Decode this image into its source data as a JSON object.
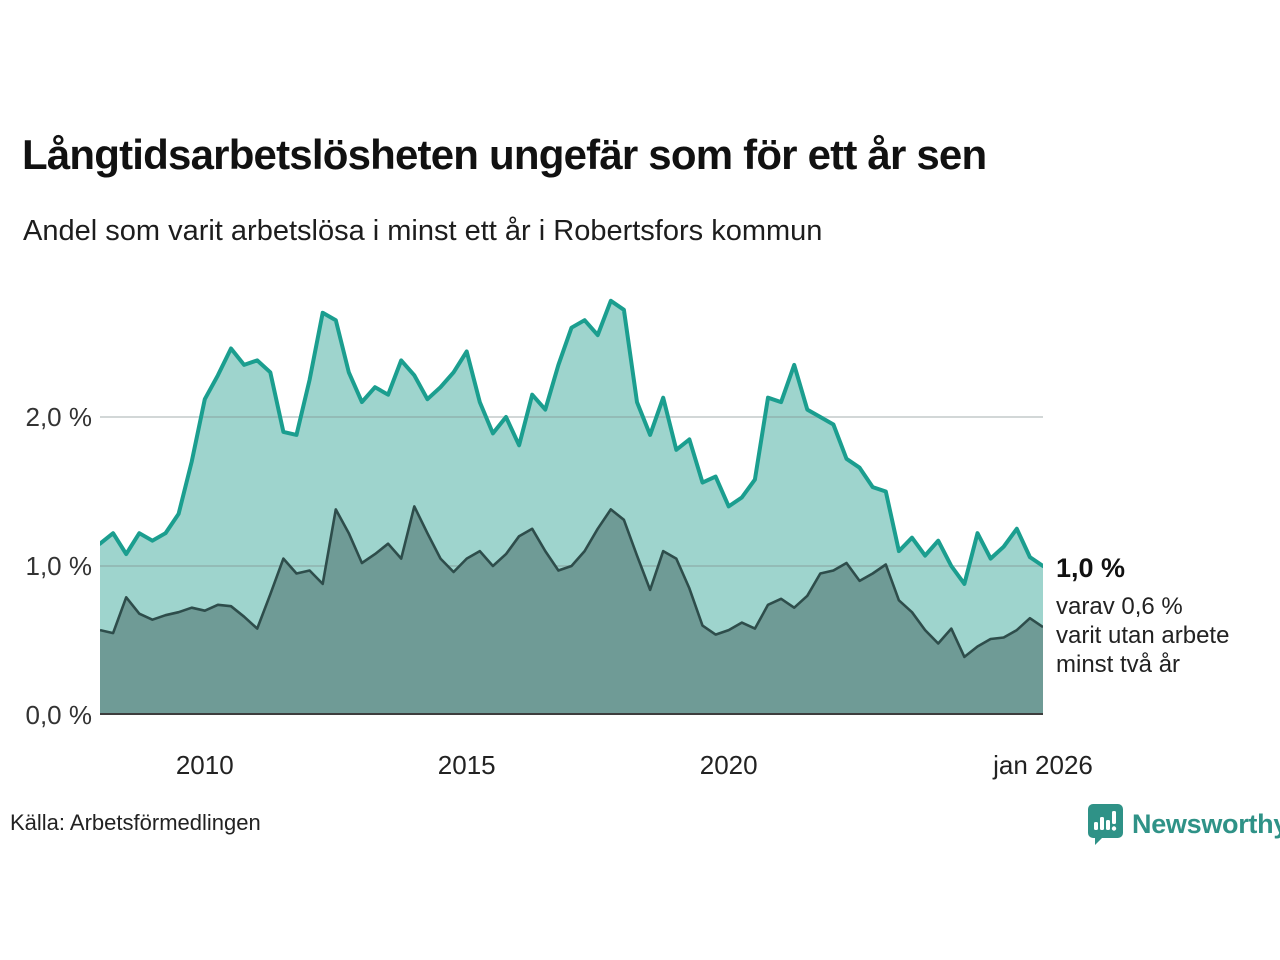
{
  "header": {
    "title": "Långtidsarbetslösheten ungefär som för ett år sen",
    "subtitle": "Andel som varit arbetslösa i minst ett år i Robertsfors kommun"
  },
  "annotation": {
    "value": "1,0 %",
    "lines": [
      "varav 0,6 %",
      "varit utan arbete",
      "minst två år"
    ]
  },
  "footer": {
    "source": "Källa: Arbetsförmedlingen",
    "brand": "Newsworthy"
  },
  "colors": {
    "series1_line": "#1b9e8f",
    "series1_fill": "#9ed4cd",
    "series2_line": "#2e4d4b",
    "series2_fill": "#6f9b96",
    "gridline": "#7d8c8c",
    "baseline": "#3d3d3d",
    "brand_teal": "#2f9287"
  },
  "chart_data": {
    "type": "area",
    "title": "Långtidsarbetslösheten ungefär som för ett år sen",
    "subtitle": "Andel som varit arbetslösa i minst ett år i Robertsfors kommun",
    "unit": "%",
    "grid": "horizontal",
    "legend_position": "none",
    "x_start": 2008.0,
    "x_step": 0.25,
    "xlim": [
      2008.0,
      2026.0
    ],
    "ylim": [
      0,
      2.987
    ],
    "x_ticks": [
      {
        "year": 2010,
        "label": "2010"
      },
      {
        "year": 2015,
        "label": "2015"
      },
      {
        "year": 2020,
        "label": "2020"
      },
      {
        "year": 2026,
        "label": "jan 2026"
      }
    ],
    "y_ticks": [
      {
        "v": 0,
        "label": "0,0 %"
      },
      {
        "v": 1,
        "label": "1,0 %"
      },
      {
        "v": 2,
        "label": "2,0 %"
      }
    ],
    "series": [
      {
        "name": "Andel arbetslösa minst ett år",
        "end_label": "1,0 %",
        "line_color": "#1b9e8f",
        "fill_color": "#9ed4cd",
        "values": [
          1.15,
          1.22,
          1.08,
          1.22,
          1.17,
          1.22,
          1.35,
          1.7,
          2.12,
          2.28,
          2.46,
          2.35,
          2.38,
          2.3,
          1.9,
          1.88,
          2.25,
          2.7,
          2.65,
          2.3,
          2.1,
          2.2,
          2.15,
          2.38,
          2.28,
          2.12,
          2.2,
          2.3,
          2.44,
          2.1,
          1.89,
          2.0,
          1.81,
          2.15,
          2.05,
          2.35,
          2.6,
          2.65,
          2.55,
          2.78,
          2.72,
          2.1,
          1.88,
          2.13,
          1.78,
          1.85,
          1.56,
          1.6,
          1.4,
          1.46,
          1.58,
          2.13,
          2.1,
          2.35,
          2.05,
          2.0,
          1.95,
          1.72,
          1.66,
          1.53,
          1.5,
          1.1,
          1.19,
          1.07,
          1.17,
          1.0,
          0.88,
          1.22,
          1.05,
          1.13,
          1.25,
          1.06,
          1.0
        ]
      },
      {
        "name": "Varav utan arbete minst två år",
        "end_label": "0,6 %",
        "line_color": "#2e4d4b",
        "fill_color": "#6f9b96",
        "values": [
          0.57,
          0.55,
          0.79,
          0.68,
          0.64,
          0.67,
          0.69,
          0.72,
          0.7,
          0.74,
          0.73,
          0.66,
          0.58,
          0.81,
          1.05,
          0.95,
          0.97,
          0.88,
          1.38,
          1.22,
          1.02,
          1.08,
          1.15,
          1.05,
          1.4,
          1.22,
          1.05,
          0.96,
          1.05,
          1.1,
          1.0,
          1.08,
          1.2,
          1.25,
          1.1,
          0.97,
          1.0,
          1.1,
          1.25,
          1.38,
          1.31,
          1.07,
          0.84,
          1.1,
          1.05,
          0.85,
          0.6,
          0.54,
          0.57,
          0.62,
          0.58,
          0.74,
          0.78,
          0.72,
          0.8,
          0.95,
          0.97,
          1.02,
          0.9,
          0.95,
          1.01,
          0.77,
          0.69,
          0.57,
          0.48,
          0.58,
          0.39,
          0.46,
          0.51,
          0.52,
          0.57,
          0.65,
          0.59
        ]
      }
    ]
  }
}
